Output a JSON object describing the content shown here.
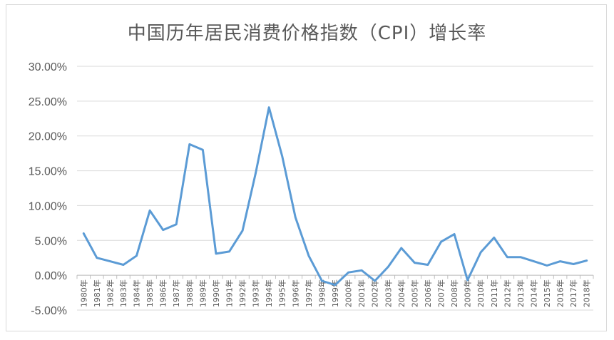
{
  "chart_data": {
    "type": "line",
    "title": "中国历年居民消费价格指数（CPI）增长率",
    "xlabel": "",
    "ylabel": "",
    "ylim": [
      -5,
      30
    ],
    "yticks": [
      30,
      25,
      20,
      15,
      10,
      5,
      0,
      -5
    ],
    "ytick_labels": [
      "30.00%",
      "25.00%",
      "20.00%",
      "15.00%",
      "10.00%",
      "5.00%",
      "0.00%",
      "-5.00%"
    ],
    "grid": true,
    "legend": "none",
    "line_color": "#5b9bd5",
    "categories": [
      "1980年",
      "1981年",
      "1982年",
      "1983年",
      "1984年",
      "1985年",
      "1986年",
      "1987年",
      "1988年",
      "1989年",
      "1990年",
      "1991年",
      "1992年",
      "1993年",
      "1994年",
      "1995年",
      "1996年",
      "1997年",
      "1998年",
      "1999年",
      "2000年",
      "2001年",
      "2002年",
      "2003年",
      "2004年",
      "2005年",
      "2006年",
      "2007年",
      "2008年",
      "2009年",
      "2010年",
      "2011年",
      "2012年",
      "2013年",
      "2014年",
      "2015年",
      "2016年",
      "2017年",
      "2018年"
    ],
    "series": [
      {
        "values": [
          6.0,
          2.5,
          2.0,
          1.5,
          2.8,
          9.3,
          6.5,
          7.3,
          18.8,
          18.0,
          3.1,
          3.4,
          6.4,
          14.7,
          24.1,
          17.1,
          8.3,
          2.8,
          -0.8,
          -1.4,
          0.4,
          0.7,
          -0.8,
          1.2,
          3.9,
          1.8,
          1.5,
          4.8,
          5.9,
          -0.7,
          3.3,
          5.4,
          2.6,
          2.6,
          2.0,
          1.4,
          2.0,
          1.6,
          2.1
        ]
      }
    ]
  }
}
